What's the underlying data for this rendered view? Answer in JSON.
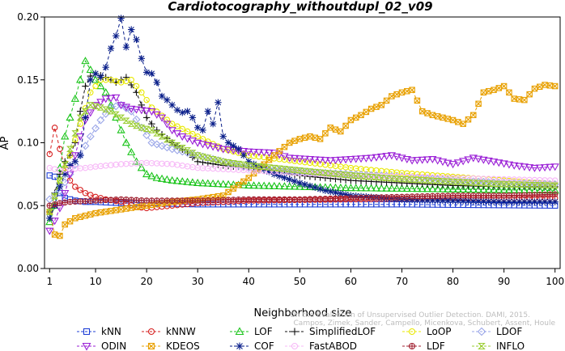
{
  "chart_data": {
    "type": "line",
    "title": "Cardiotocography_withoutdupl_02_v09",
    "xlabel": "Neighborhood size",
    "ylabel": "AP",
    "xlim": [
      0,
      101
    ],
    "ylim": [
      0.0,
      0.2
    ],
    "x_ticks": [
      1,
      10,
      20,
      30,
      40,
      50,
      60,
      70,
      80,
      90,
      100
    ],
    "y_ticks": [
      0.0,
      0.05,
      0.1,
      0.15,
      0.2
    ],
    "y_tick_labels": [
      "0.00",
      "0.05",
      "0.10",
      "0.15",
      "0.20"
    ],
    "watermark": "Campos, Zimek, Sander, Campello, Micenkova, Schubert, Assent, Houle",
    "watermark2": "On the Evaluation of Unsupervised Outlier Detection. DAMI, 2015.",
    "series": [
      {
        "name": "kNN",
        "color": "#1f3fd6",
        "marker": "square",
        "points": [
          [
            1,
            0.074
          ],
          [
            2,
            0.073
          ],
          [
            3,
            0.06
          ],
          [
            4,
            0.056
          ],
          [
            5,
            0.055
          ],
          [
            6,
            0.054
          ],
          [
            8,
            0.053
          ],
          [
            10,
            0.053
          ],
          [
            15,
            0.052
          ],
          [
            20,
            0.052
          ],
          [
            30,
            0.051
          ],
          [
            50,
            0.051
          ],
          [
            70,
            0.051
          ],
          [
            100,
            0.05
          ]
        ]
      },
      {
        "name": "kNNW",
        "color": "#d62020",
        "marker": "circle",
        "points": [
          [
            1,
            0.091
          ],
          [
            2,
            0.112
          ],
          [
            3,
            0.095
          ],
          [
            4,
            0.08
          ],
          [
            5,
            0.07
          ],
          [
            6,
            0.065
          ],
          [
            8,
            0.06
          ],
          [
            10,
            0.057
          ],
          [
            12,
            0.055
          ],
          [
            15,
            0.053
          ],
          [
            18,
            0.049
          ],
          [
            20,
            0.048
          ],
          [
            25,
            0.05
          ],
          [
            30,
            0.052
          ],
          [
            40,
            0.054
          ],
          [
            60,
            0.055
          ],
          [
            80,
            0.056
          ],
          [
            100,
            0.056
          ]
        ]
      },
      {
        "name": "LOF",
        "color": "#19c419",
        "marker": "triangle-up",
        "points": [
          [
            1,
            0.037
          ],
          [
            2,
            0.05
          ],
          [
            3,
            0.08
          ],
          [
            4,
            0.105
          ],
          [
            5,
            0.12
          ],
          [
            6,
            0.135
          ],
          [
            7,
            0.15
          ],
          [
            8,
            0.165
          ],
          [
            9,
            0.158
          ],
          [
            10,
            0.15
          ],
          [
            12,
            0.14
          ],
          [
            14,
            0.12
          ],
          [
            16,
            0.1
          ],
          [
            18,
            0.085
          ],
          [
            20,
            0.075
          ],
          [
            22,
            0.072
          ],
          [
            25,
            0.07
          ],
          [
            30,
            0.068
          ],
          [
            40,
            0.066
          ],
          [
            60,
            0.064
          ],
          [
            80,
            0.063
          ],
          [
            100,
            0.062
          ]
        ]
      },
      {
        "name": "SimplifiedLOF",
        "color": "#111111",
        "marker": "plus",
        "points": [
          [
            1,
            0.045
          ],
          [
            2,
            0.06
          ],
          [
            3,
            0.075
          ],
          [
            4,
            0.085
          ],
          [
            5,
            0.09
          ],
          [
            6,
            0.1
          ],
          [
            7,
            0.125
          ],
          [
            8,
            0.145
          ],
          [
            9,
            0.153
          ],
          [
            10,
            0.155
          ],
          [
            12,
            0.152
          ],
          [
            14,
            0.148
          ],
          [
            16,
            0.152
          ],
          [
            18,
            0.14
          ],
          [
            20,
            0.12
          ],
          [
            22,
            0.11
          ],
          [
            25,
            0.1
          ],
          [
            28,
            0.092
          ],
          [
            30,
            0.085
          ],
          [
            35,
            0.082
          ],
          [
            40,
            0.08
          ],
          [
            50,
            0.074
          ],
          [
            60,
            0.07
          ],
          [
            70,
            0.068
          ],
          [
            80,
            0.066
          ],
          [
            90,
            0.065
          ],
          [
            100,
            0.065
          ]
        ]
      },
      {
        "name": "LoOP",
        "color": "#e8e800",
        "marker": "circle",
        "points": [
          [
            1,
            0.045
          ],
          [
            3,
            0.07
          ],
          [
            5,
            0.09
          ],
          [
            7,
            0.115
          ],
          [
            9,
            0.14
          ],
          [
            11,
            0.15
          ],
          [
            13,
            0.15
          ],
          [
            15,
            0.148
          ],
          [
            17,
            0.15
          ],
          [
            19,
            0.14
          ],
          [
            21,
            0.128
          ],
          [
            25,
            0.115
          ],
          [
            30,
            0.105
          ],
          [
            35,
            0.095
          ],
          [
            40,
            0.09
          ],
          [
            50,
            0.085
          ],
          [
            60,
            0.08
          ],
          [
            70,
            0.076
          ],
          [
            80,
            0.073
          ],
          [
            90,
            0.07
          ],
          [
            100,
            0.067
          ]
        ]
      },
      {
        "name": "LDOF",
        "color": "#9aa6e8",
        "marker": "diamond",
        "points": [
          [
            1,
            0.055
          ],
          [
            3,
            0.062
          ],
          [
            5,
            0.075
          ],
          [
            7,
            0.09
          ],
          [
            9,
            0.105
          ],
          [
            11,
            0.118
          ],
          [
            13,
            0.128
          ],
          [
            15,
            0.13
          ],
          [
            17,
            0.125
          ],
          [
            19,
            0.112
          ],
          [
            21,
            0.1
          ],
          [
            25,
            0.095
          ],
          [
            30,
            0.09
          ],
          [
            35,
            0.085
          ],
          [
            40,
            0.08
          ],
          [
            50,
            0.077
          ],
          [
            60,
            0.075
          ],
          [
            70,
            0.073
          ],
          [
            80,
            0.07
          ],
          [
            90,
            0.068
          ],
          [
            100,
            0.067
          ]
        ]
      },
      {
        "name": "ODIN",
        "color": "#9a1fd6",
        "marker": "triangle-down",
        "points": [
          [
            1,
            0.03
          ],
          [
            2,
            0.038
          ],
          [
            3,
            0.048
          ],
          [
            4,
            0.06
          ],
          [
            5,
            0.075
          ],
          [
            6,
            0.09
          ],
          [
            7,
            0.105
          ],
          [
            8,
            0.118
          ],
          [
            10,
            0.13
          ],
          [
            12,
            0.135
          ],
          [
            14,
            0.136
          ],
          [
            15,
            0.13
          ],
          [
            17,
            0.127
          ],
          [
            19,
            0.126
          ],
          [
            21,
            0.125
          ],
          [
            23,
            0.12
          ],
          [
            25,
            0.11
          ],
          [
            27,
            0.105
          ],
          [
            30,
            0.1
          ],
          [
            35,
            0.095
          ],
          [
            40,
            0.093
          ],
          [
            45,
            0.092
          ],
          [
            48,
            0.088
          ],
          [
            52,
            0.087
          ],
          [
            56,
            0.086
          ],
          [
            60,
            0.087
          ],
          [
            64,
            0.088
          ],
          [
            68,
            0.09
          ],
          [
            72,
            0.086
          ],
          [
            76,
            0.087
          ],
          [
            80,
            0.083
          ],
          [
            84,
            0.088
          ],
          [
            88,
            0.085
          ],
          [
            92,
            0.082
          ],
          [
            96,
            0.08
          ],
          [
            100,
            0.081
          ]
        ]
      },
      {
        "name": "KDEOS",
        "color": "#e8a000",
        "marker": "square-x",
        "points": [
          [
            1,
            0.045
          ],
          [
            2,
            0.027
          ],
          [
            3,
            0.026
          ],
          [
            4,
            0.035
          ],
          [
            6,
            0.04
          ],
          [
            8,
            0.042
          ],
          [
            10,
            0.044
          ],
          [
            15,
            0.047
          ],
          [
            20,
            0.05
          ],
          [
            25,
            0.053
          ],
          [
            30,
            0.055
          ],
          [
            35,
            0.058
          ],
          [
            40,
            0.072
          ],
          [
            45,
            0.09
          ],
          [
            48,
            0.1
          ],
          [
            50,
            0.103
          ],
          [
            52,
            0.105
          ],
          [
            54,
            0.103
          ],
          [
            56,
            0.112
          ],
          [
            58,
            0.109
          ],
          [
            60,
            0.118
          ],
          [
            62,
            0.122
          ],
          [
            64,
            0.127
          ],
          [
            66,
            0.13
          ],
          [
            68,
            0.137
          ],
          [
            70,
            0.14
          ],
          [
            72,
            0.142
          ],
          [
            74,
            0.125
          ],
          [
            76,
            0.122
          ],
          [
            78,
            0.12
          ],
          [
            80,
            0.118
          ],
          [
            82,
            0.115
          ],
          [
            84,
            0.122
          ],
          [
            86,
            0.14
          ],
          [
            88,
            0.142
          ],
          [
            90,
            0.145
          ],
          [
            92,
            0.135
          ],
          [
            94,
            0.134
          ],
          [
            96,
            0.143
          ],
          [
            98,
            0.146
          ],
          [
            100,
            0.145
          ]
        ]
      },
      {
        "name": "COF",
        "color": "#0a1f8a",
        "marker": "star",
        "points": [
          [
            1,
            0.04
          ],
          [
            2,
            0.05
          ],
          [
            3,
            0.065
          ],
          [
            4,
            0.075
          ],
          [
            5,
            0.082
          ],
          [
            6,
            0.085
          ],
          [
            7,
            0.09
          ],
          [
            8,
            0.12
          ],
          [
            9,
            0.15
          ],
          [
            10,
            0.155
          ],
          [
            11,
            0.152
          ],
          [
            12,
            0.16
          ],
          [
            13,
            0.175
          ],
          [
            14,
            0.185
          ],
          [
            15,
            0.199
          ],
          [
            16,
            0.176
          ],
          [
            17,
            0.19
          ],
          [
            18,
            0.182
          ],
          [
            19,
            0.167
          ],
          [
            20,
            0.156
          ],
          [
            21,
            0.155
          ],
          [
            22,
            0.148
          ],
          [
            23,
            0.137
          ],
          [
            24,
            0.134
          ],
          [
            25,
            0.13
          ],
          [
            26,
            0.126
          ],
          [
            27,
            0.124
          ],
          [
            28,
            0.125
          ],
          [
            29,
            0.12
          ],
          [
            30,
            0.112
          ],
          [
            31,
            0.11
          ],
          [
            32,
            0.125
          ],
          [
            33,
            0.115
          ],
          [
            34,
            0.132
          ],
          [
            35,
            0.105
          ],
          [
            36,
            0.1
          ],
          [
            38,
            0.095
          ],
          [
            40,
            0.085
          ],
          [
            45,
            0.075
          ],
          [
            50,
            0.068
          ],
          [
            55,
            0.062
          ],
          [
            60,
            0.058
          ],
          [
            70,
            0.055
          ],
          [
            80,
            0.054
          ],
          [
            90,
            0.053
          ],
          [
            100,
            0.053
          ]
        ]
      },
      {
        "name": "FastABOD",
        "color": "#f7b8f7",
        "marker": "circle",
        "points": [
          [
            1,
            0.08
          ],
          [
            3,
            0.078
          ],
          [
            5,
            0.079
          ],
          [
            8,
            0.08
          ],
          [
            10,
            0.081
          ],
          [
            15,
            0.083
          ],
          [
            20,
            0.084
          ],
          [
            25,
            0.083
          ],
          [
            30,
            0.08
          ],
          [
            40,
            0.078
          ],
          [
            50,
            0.076
          ],
          [
            60,
            0.074
          ],
          [
            70,
            0.073
          ],
          [
            80,
            0.072
          ],
          [
            90,
            0.071
          ],
          [
            100,
            0.07
          ]
        ]
      },
      {
        "name": "LDF",
        "color": "#a02030",
        "marker": "circle-plus",
        "points": [
          [
            1,
            0.05
          ],
          [
            3,
            0.052
          ],
          [
            5,
            0.053
          ],
          [
            10,
            0.054
          ],
          [
            15,
            0.055
          ],
          [
            20,
            0.054
          ],
          [
            30,
            0.054
          ],
          [
            40,
            0.055
          ],
          [
            50,
            0.055
          ],
          [
            60,
            0.056
          ],
          [
            70,
            0.057
          ],
          [
            80,
            0.058
          ],
          [
            90,
            0.058
          ],
          [
            100,
            0.059
          ]
        ]
      },
      {
        "name": "INFLO",
        "color": "#9acd32",
        "marker": "hourglass",
        "points": [
          [
            1,
            0.045
          ],
          [
            3,
            0.07
          ],
          [
            5,
            0.095
          ],
          [
            7,
            0.12
          ],
          [
            9,
            0.13
          ],
          [
            11,
            0.128
          ],
          [
            13,
            0.125
          ],
          [
            15,
            0.12
          ],
          [
            17,
            0.115
          ],
          [
            19,
            0.112
          ],
          [
            21,
            0.11
          ],
          [
            25,
            0.1
          ],
          [
            30,
            0.09
          ],
          [
            35,
            0.085
          ],
          [
            40,
            0.082
          ],
          [
            50,
            0.078
          ],
          [
            60,
            0.074
          ],
          [
            70,
            0.071
          ],
          [
            80,
            0.069
          ],
          [
            90,
            0.067
          ],
          [
            100,
            0.066
          ]
        ]
      }
    ]
  }
}
